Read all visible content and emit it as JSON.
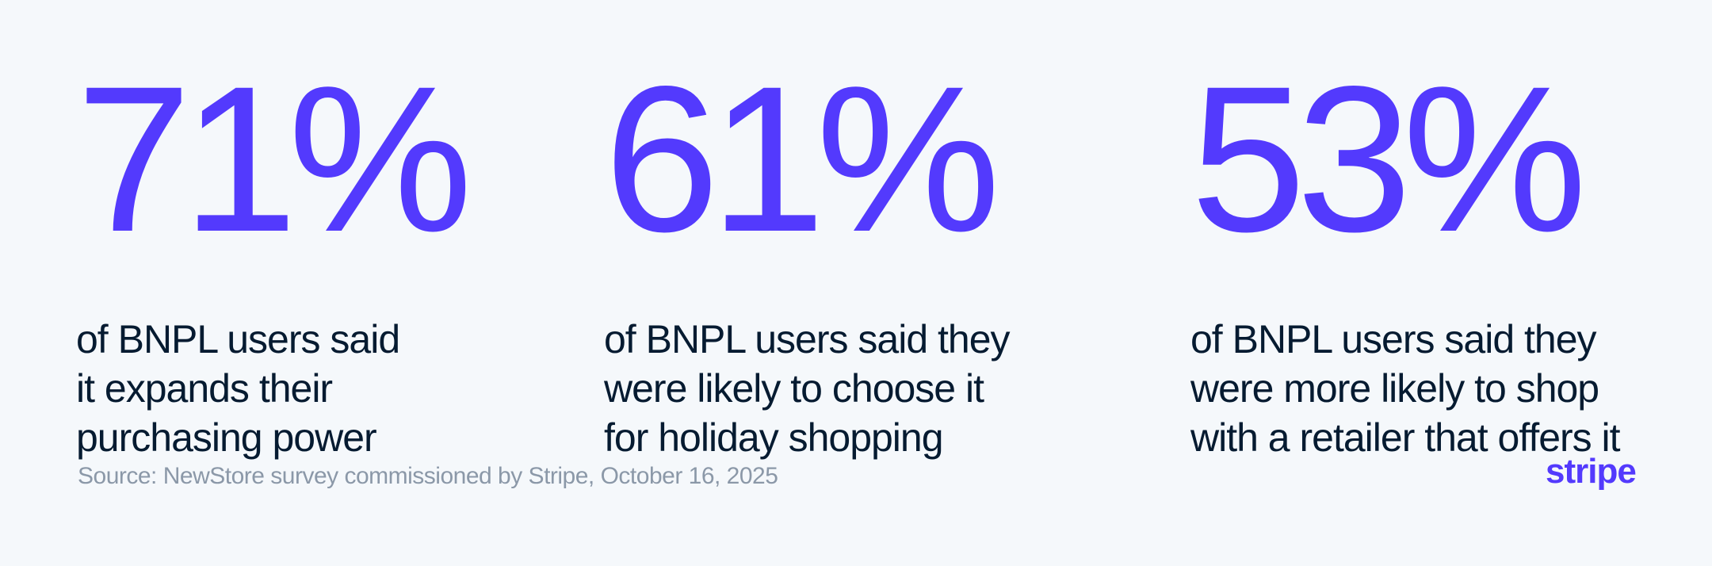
{
  "stats": [
    {
      "value": "71%",
      "caption_lines": [
        "of BNPL users said",
        "it expands their",
        "purchasing power"
      ]
    },
    {
      "value": "61%",
      "caption_lines": [
        "of BNPL users said they",
        "were likely to choose it",
        "for holiday shopping"
      ]
    },
    {
      "value": "53%",
      "caption_lines": [
        "of BNPL users said they",
        "were more likely to shop",
        "with a retailer that offers it"
      ]
    }
  ],
  "footer": {
    "source": "Source: NewStore survey commissioned by Stripe, October 16, 2025",
    "logo_text": "stripe"
  },
  "colors": {
    "accent": "#533afd",
    "text": "#061b31",
    "muted": "#8b98a8",
    "background": "#f5f8fb"
  }
}
